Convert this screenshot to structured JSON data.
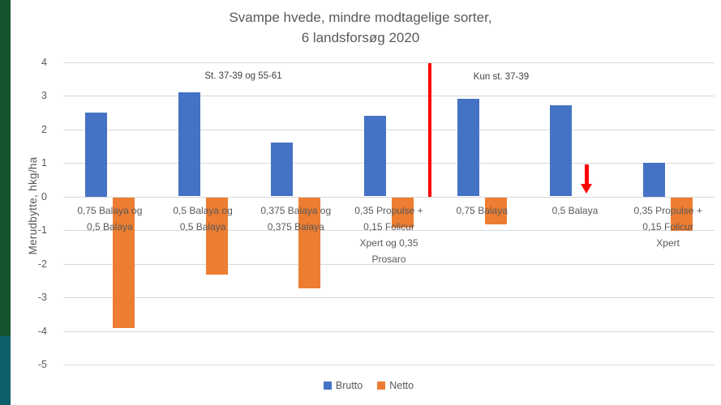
{
  "title": "Svampe hvede, mindre modtagelige sorter,\n6 landsforsøg 2020",
  "y_axis": {
    "label": "Merudbytte, hkg/ha",
    "ticks": [
      4,
      3,
      2,
      1,
      0,
      -1,
      -2,
      -3,
      -4,
      -5
    ],
    "min": -5,
    "max": 4
  },
  "annotations": [
    {
      "text": "St. 37-39 og 55-61"
    },
    {
      "text": "Kun st. 37-39"
    }
  ],
  "separator": {
    "color": "#FF0000"
  },
  "netto_marker": {
    "category": "0,5 Balaya",
    "icon": "red-down-arrow",
    "color": "#FF0000"
  },
  "accent_bars": {
    "green": "#14532B",
    "teal": "#0C5F6B"
  },
  "legend": [
    {
      "label": "Brutto",
      "color": "#4472C4"
    },
    {
      "label": "Netto",
      "color": "#ED7D31"
    }
  ],
  "chart_data": {
    "type": "bar",
    "title": "Svampe hvede, mindre modtagelige sorter, 6 landsforsøg 2020",
    "xlabel": "",
    "ylabel": "Merudbytte, hkg/ha",
    "ylim": [
      -5,
      4
    ],
    "grid": "horizontal",
    "legend_position": "bottom",
    "categories": [
      "0,75 Balaya og\n0,5 Balaya",
      "0,5 Balaya og\n0,5 Balaya",
      "0,375 Balaya og\n0,375 Balaya",
      "0,35 Propulse +\n0,15 Folicur\nXpert og 0,35\nProsaro",
      "0,75 Balaya",
      "0,5 Balaya",
      "0,35 Propulse +\n0,15 Folicur\nXpert"
    ],
    "series": [
      {
        "name": "Brutto",
        "color": "#4472C4",
        "values": [
          2.5,
          3.1,
          1.6,
          2.4,
          2.9,
          2.7,
          1.0
        ]
      },
      {
        "name": "Netto",
        "color": "#ED7D31",
        "values": [
          -3.9,
          -2.3,
          -2.7,
          -0.9,
          -0.8,
          null,
          -1.0
        ]
      }
    ],
    "group_annotations": [
      {
        "text": "St. 37-39 og 55-61",
        "covers_categories": [
          0,
          3
        ]
      },
      {
        "text": "Kun st. 37-39",
        "covers_categories": [
          4,
          6
        ]
      }
    ],
    "notes": "Red vertical line separates the two trial groups; missing Netto bar for '0,5 Balaya' is drawn as a red downward arrow (netto ≈ 0)."
  }
}
